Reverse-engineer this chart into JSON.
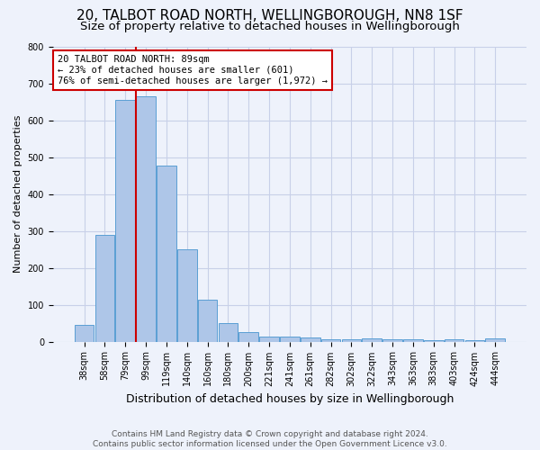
{
  "title": "20, TALBOT ROAD NORTH, WELLINGBOROUGH, NN8 1SF",
  "subtitle": "Size of property relative to detached houses in Wellingborough",
  "xlabel": "Distribution of detached houses by size in Wellingborough",
  "ylabel": "Number of detached properties",
  "bar_labels": [
    "38sqm",
    "58sqm",
    "79sqm",
    "99sqm",
    "119sqm",
    "140sqm",
    "160sqm",
    "180sqm",
    "200sqm",
    "221sqm",
    "241sqm",
    "261sqm",
    "282sqm",
    "302sqm",
    "322sqm",
    "343sqm",
    "363sqm",
    "383sqm",
    "403sqm",
    "424sqm",
    "444sqm"
  ],
  "bar_values": [
    45,
    290,
    655,
    665,
    478,
    250,
    113,
    50,
    25,
    13,
    14,
    10,
    7,
    6,
    8,
    6,
    7,
    5,
    7,
    5,
    8
  ],
  "bar_color": "#aec6e8",
  "bar_edgecolor": "#5a9fd4",
  "background_color": "#eef2fb",
  "grid_color": "#c8d0e8",
  "vline_x": 2.5,
  "vline_color": "#cc0000",
  "annotation_text": "20 TALBOT ROAD NORTH: 89sqm\n← 23% of detached houses are smaller (601)\n76% of semi-detached houses are larger (1,972) →",
  "annotation_box_color": "#ffffff",
  "annotation_box_edgecolor": "#cc0000",
  "footer_text": "Contains HM Land Registry data © Crown copyright and database right 2024.\nContains public sector information licensed under the Open Government Licence v3.0.",
  "ylim": [
    0,
    800
  ],
  "title_fontsize": 11,
  "subtitle_fontsize": 9.5,
  "xlabel_fontsize": 9,
  "ylabel_fontsize": 8,
  "tick_fontsize": 7,
  "footer_fontsize": 6.5,
  "annotation_fontsize": 7.5
}
